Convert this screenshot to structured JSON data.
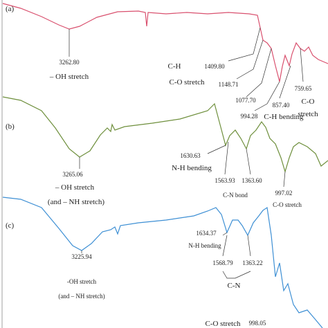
{
  "panels": [
    {
      "label": "(a)",
      "annotations": [
        "3262.80",
        "– OH stretch",
        "C-H",
        "1409.80",
        "1148.71",
        "C-O stretch",
        "1077.70",
        "994.28",
        "857.40",
        "C-H bending",
        "759.65",
        "C-O",
        "stretch"
      ]
    },
    {
      "label": "(b)",
      "annotations": [
        "1630.63",
        "N-H bending",
        "1563.93",
        "1363.60",
        "C-N bond",
        "3265.06",
        "– OH stretch",
        "(and – NH stretch)",
        "997.02",
        "C-O stretch"
      ]
    },
    {
      "label": "(c)",
      "annotations": [
        "1634.37",
        "N-H bending",
        "3225.94",
        "-OH stretch",
        "(and – NH stretch)",
        "1568.79",
        "1363.22",
        "C-N",
        "C-O stretch",
        "998.05"
      ]
    }
  ]
}
